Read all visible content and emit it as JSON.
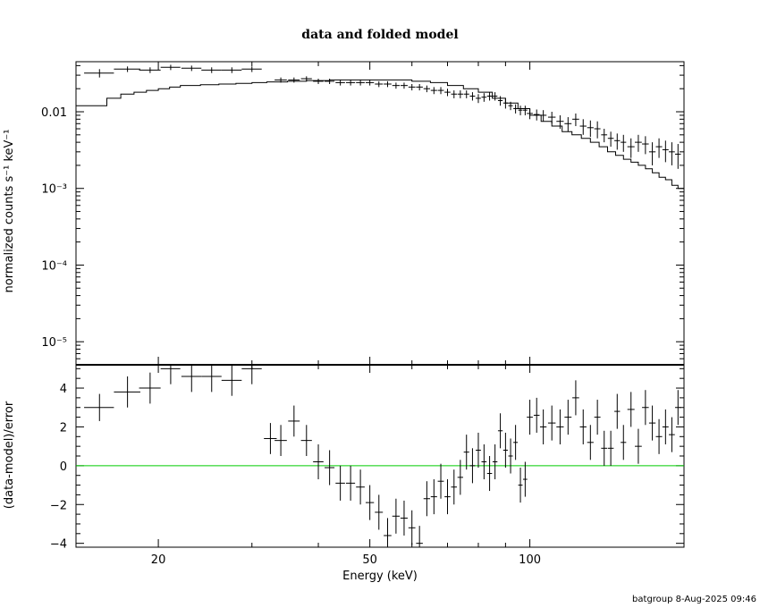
{
  "title": "data and folded model",
  "footer": "batgroup  8-Aug-2025 09:46",
  "colors": {
    "zero_line": "#00cc00",
    "data": "#000000",
    "model": "#000000"
  },
  "chart_data": [
    {
      "type": "step+errorbar",
      "panel": "top",
      "xscale": "log",
      "yscale": "log",
      "xlim": [
        14,
        195
      ],
      "ylim": [
        5e-06,
        0.045
      ],
      "ylabel": "normalized counts s⁻¹ keV⁻¹",
      "ytick_labels": [
        "0.01",
        "10⁻³",
        "10⁻⁴",
        "10⁻⁵"
      ],
      "ytick_values": [
        0.01,
        0.001,
        0.0001,
        1e-05
      ],
      "data": {
        "x": [
          15.5,
          17.5,
          19.3,
          21.1,
          23.1,
          25.2,
          27.5,
          30.0,
          34.0,
          36.0,
          38.0,
          40.0,
          42.0,
          44.0,
          46.0,
          48.0,
          50.0,
          52.0,
          54.0,
          56.0,
          58.0,
          60.0,
          62.0,
          64.0,
          66.0,
          68.0,
          70.0,
          72.0,
          74.0,
          76.0,
          78.0,
          80.0,
          82.0,
          84.0,
          86.0,
          88.0,
          90.0,
          92.0,
          94.0,
          96.0,
          98.0,
          100.0,
          103.0,
          106.0,
          110.0,
          114.0,
          118.0,
          122.0,
          126.0,
          130.0,
          134.0,
          138.0,
          142.0,
          146.0,
          150.0,
          155.0,
          160.0,
          165.0,
          170.0,
          175.0,
          180.0,
          185.0,
          190.0
        ],
        "xerr": [
          1.0,
          1.0,
          0.9,
          0.9,
          1.0,
          1.1,
          1.2,
          1.3,
          0.9,
          0.9,
          0.9,
          0.9,
          0.9,
          0.9,
          0.9,
          0.9,
          0.9,
          0.9,
          0.9,
          0.9,
          0.9,
          0.9,
          0.9,
          0.9,
          0.9,
          0.9,
          0.9,
          0.9,
          0.9,
          0.9,
          0.9,
          0.9,
          0.9,
          0.9,
          0.9,
          0.9,
          0.9,
          0.9,
          0.9,
          0.9,
          0.9,
          1.3,
          1.3,
          1.5,
          1.8,
          1.8,
          1.8,
          1.8,
          1.8,
          1.8,
          1.8,
          1.8,
          1.8,
          1.8,
          1.8,
          2.4,
          2.4,
          2.4,
          2.4,
          2.4,
          2.4,
          2.4,
          2.4
        ],
        "y": [
          0.032,
          0.036,
          0.035,
          0.038,
          0.037,
          0.035,
          0.035,
          0.036,
          0.026,
          0.026,
          0.027,
          0.025,
          0.025,
          0.024,
          0.024,
          0.024,
          0.024,
          0.023,
          0.023,
          0.022,
          0.022,
          0.021,
          0.021,
          0.02,
          0.019,
          0.019,
          0.018,
          0.017,
          0.017,
          0.017,
          0.016,
          0.015,
          0.0155,
          0.016,
          0.016,
          0.014,
          0.013,
          0.012,
          0.011,
          0.0105,
          0.0105,
          0.0095,
          0.0092,
          0.009,
          0.0085,
          0.0075,
          0.007,
          0.008,
          0.0065,
          0.0062,
          0.006,
          0.005,
          0.0045,
          0.0042,
          0.004,
          0.0035,
          0.004,
          0.0038,
          0.003,
          0.0035,
          0.0032,
          0.003,
          0.0028
        ],
        "yerr": [
          0.004,
          0.003,
          0.003,
          0.003,
          0.003,
          0.003,
          0.003,
          0.003,
          0.002,
          0.002,
          0.002,
          0.002,
          0.002,
          0.002,
          0.002,
          0.002,
          0.002,
          0.002,
          0.002,
          0.002,
          0.002,
          0.002,
          0.002,
          0.002,
          0.002,
          0.002,
          0.002,
          0.002,
          0.002,
          0.002,
          0.002,
          0.002,
          0.002,
          0.002,
          0.002,
          0.002,
          0.002,
          0.0015,
          0.0015,
          0.0015,
          0.0015,
          0.0015,
          0.0015,
          0.0015,
          0.0015,
          0.0015,
          0.0015,
          0.0015,
          0.0015,
          0.0015,
          0.0015,
          0.001,
          0.001,
          0.001,
          0.001,
          0.001,
          0.001,
          0.001,
          0.001,
          0.001,
          0.001,
          0.001,
          0.001
        ]
      },
      "model": {
        "x": [
          14.0,
          16.0,
          17.0,
          18.0,
          19.0,
          20.0,
          21.0,
          22.0,
          24.0,
          26.0,
          28.0,
          30.0,
          32.0,
          35.0,
          38.0,
          42.0,
          46.0,
          50.0,
          55.0,
          60.0,
          65.0,
          70.0,
          75.0,
          80.0,
          85.0,
          90.0,
          95.0,
          100.0,
          105.0,
          110.0,
          115.0,
          120.0,
          125.0,
          130.0,
          135.0,
          140.0,
          145.0,
          150.0,
          155.0,
          160.0,
          165.0,
          170.0,
          175.0,
          180.0,
          185.0,
          190.0,
          195.0
        ],
        "y": [
          0.012,
          0.015,
          0.017,
          0.018,
          0.019,
          0.02,
          0.021,
          0.022,
          0.0225,
          0.023,
          0.0235,
          0.024,
          0.0245,
          0.025,
          0.0255,
          0.026,
          0.026,
          0.026,
          0.026,
          0.025,
          0.024,
          0.022,
          0.02,
          0.018,
          0.015,
          0.013,
          0.011,
          0.009,
          0.0075,
          0.0065,
          0.0055,
          0.005,
          0.0045,
          0.004,
          0.0035,
          0.003,
          0.0027,
          0.0024,
          0.0022,
          0.002,
          0.0018,
          0.0016,
          0.0014,
          0.0013,
          0.0011,
          0.001,
          0.00085
        ]
      }
    },
    {
      "type": "errorbar",
      "panel": "bottom",
      "xscale": "log",
      "xlim": [
        14,
        195
      ],
      "ylim": [
        -4.2,
        5.2
      ],
      "ylabel": "(data-model)/error",
      "xlabel": "Energy (keV)",
      "xtick_labels": [
        "20",
        "50",
        "100"
      ],
      "xtick_values": [
        20,
        50,
        100
      ],
      "ytick_labels": [
        "4",
        "2",
        "0",
        "−2",
        "−4"
      ],
      "ytick_values": [
        4,
        2,
        0,
        -2,
        -4
      ],
      "zero_line": 0,
      "data": {
        "x": [
          15.5,
          17.5,
          19.3,
          21.1,
          23.1,
          25.2,
          27.5,
          30.0,
          32.5,
          34.0,
          36.0,
          38.0,
          40.0,
          42.0,
          44.0,
          46.0,
          48.0,
          50.0,
          52.0,
          54.0,
          56.0,
          58.0,
          60.0,
          62.0,
          64.0,
          66.0,
          68.0,
          70.0,
          72.0,
          74.0,
          76.0,
          78.0,
          80.0,
          82.0,
          84.0,
          86.0,
          88.0,
          90.0,
          92.0,
          94.0,
          96.0,
          98.0,
          100.0,
          103.0,
          106.0,
          110.0,
          114.0,
          118.0,
          122.0,
          126.0,
          130.0,
          134.0,
          138.0,
          142.0,
          146.0,
          150.0,
          155.0,
          160.0,
          165.0,
          170.0,
          175.0,
          180.0,
          185.0,
          190.0
        ],
        "xerr": [
          1.0,
          1.0,
          0.9,
          0.9,
          1.0,
          1.1,
          1.2,
          1.3,
          0.9,
          0.9,
          0.9,
          0.9,
          0.9,
          0.9,
          0.9,
          0.9,
          0.9,
          0.9,
          0.9,
          0.9,
          0.9,
          0.9,
          0.9,
          0.9,
          0.9,
          0.9,
          0.9,
          0.9,
          0.9,
          0.9,
          0.9,
          0.9,
          0.9,
          0.9,
          0.9,
          0.9,
          0.9,
          0.9,
          0.9,
          0.9,
          0.9,
          0.9,
          1.3,
          1.3,
          1.5,
          1.8,
          1.8,
          1.8,
          1.8,
          1.8,
          1.8,
          1.8,
          1.8,
          1.8,
          1.8,
          1.8,
          2.4,
          2.4,
          2.4,
          2.4,
          2.4,
          2.4,
          2.4,
          2.4
        ],
        "y": [
          3.0,
          3.8,
          4.0,
          5.0,
          4.6,
          4.6,
          4.4,
          5.0,
          1.4,
          1.3,
          2.3,
          1.3,
          0.2,
          -0.1,
          -0.9,
          -0.9,
          -1.1,
          -1.9,
          -2.4,
          -3.6,
          -2.6,
          -2.7,
          -3.2,
          -4.0,
          -1.7,
          -1.6,
          -0.8,
          -1.6,
          -1.1,
          -0.6,
          0.7,
          0.0,
          0.8,
          0.2,
          -0.4,
          0.2,
          1.8,
          0.8,
          0.5,
          1.2,
          -1.0,
          -0.7,
          2.5,
          2.6,
          2.0,
          2.2,
          2.0,
          2.5,
          3.5,
          2.0,
          1.2,
          2.5,
          0.9,
          0.9,
          2.8,
          1.2,
          2.9,
          1.0,
          3.0,
          2.2,
          1.5,
          2.0,
          1.6,
          3.0
        ],
        "yerr": [
          0.7,
          0.8,
          0.8,
          0.8,
          0.8,
          0.8,
          0.8,
          0.8,
          0.8,
          0.8,
          0.8,
          0.8,
          0.9,
          0.9,
          0.9,
          0.9,
          0.9,
          0.9,
          0.9,
          0.9,
          0.9,
          0.9,
          0.9,
          0.9,
          0.9,
          0.9,
          0.9,
          0.9,
          0.9,
          0.9,
          0.9,
          0.9,
          0.9,
          0.9,
          0.9,
          0.9,
          0.9,
          0.9,
          0.9,
          0.9,
          0.9,
          0.9,
          0.9,
          0.9,
          0.9,
          0.9,
          0.9,
          0.9,
          0.9,
          0.9,
          0.9,
          0.9,
          0.9,
          0.9,
          0.9,
          0.9,
          0.9,
          0.9,
          0.9,
          0.9,
          0.9,
          0.9,
          0.9,
          0.9
        ]
      }
    }
  ]
}
